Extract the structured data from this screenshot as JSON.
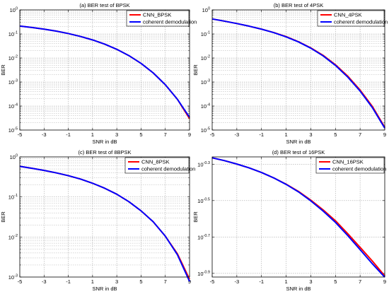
{
  "chart_data": [
    {
      "type": "line",
      "title": "(a)  BER test of BPSK",
      "xlabel": "SNR in dB",
      "ylabel": "BER",
      "yscale": "log",
      "xlim": [
        -5,
        9
      ],
      "ylim": [
        1e-05,
        1
      ],
      "xticks": [
        -5,
        -3,
        -1,
        1,
        3,
        5,
        7,
        9
      ],
      "yticks": [
        {
          "exp": "0"
        },
        {
          "exp": "-1"
        },
        {
          "exp": "-2"
        },
        {
          "exp": "-3"
        },
        {
          "exp": "-4"
        },
        {
          "exp": "-5"
        }
      ],
      "grid": true,
      "legend_position": "top-right",
      "x": [
        -5,
        -4,
        -3,
        -2,
        -1,
        0,
        1,
        2,
        3,
        4,
        5,
        6,
        7,
        8,
        8.5,
        9
      ],
      "series": [
        {
          "name": "CNN_BPSK",
          "color": "#ff0000",
          "values": [
            0.213,
            0.186,
            0.158,
            0.131,
            0.104,
            0.0786,
            0.0563,
            0.0375,
            0.0229,
            0.0125,
            0.00595,
            0.00239,
            0.00077,
            0.00019,
            7.5e-05,
            3e-05
          ]
        },
        {
          "name": "coherent demodulation",
          "color": "#0000ff",
          "values": [
            0.213,
            0.186,
            0.158,
            0.131,
            0.104,
            0.0786,
            0.0563,
            0.0375,
            0.0229,
            0.0125,
            0.00595,
            0.00239,
            0.00077,
            0.00019,
            8e-05,
            3.4e-05
          ]
        }
      ]
    },
    {
      "type": "line",
      "title": "(b)  BER test of 4PSK",
      "xlabel": "SNR in dB",
      "ylabel": "BER",
      "yscale": "log",
      "xlim": [
        -5,
        9
      ],
      "ylim": [
        1e-05,
        1
      ],
      "xticks": [
        -5,
        -3,
        -1,
        1,
        3,
        5,
        7,
        9
      ],
      "yticks": [
        {
          "exp": "0"
        },
        {
          "exp": "-1"
        },
        {
          "exp": "-2"
        },
        {
          "exp": "-3"
        },
        {
          "exp": "-4"
        },
        {
          "exp": "-5"
        }
      ],
      "grid": true,
      "legend_position": "top-right",
      "x": [
        -5,
        -4,
        -3,
        -2,
        -1,
        0,
        1,
        2,
        3,
        4,
        5,
        6,
        7,
        8,
        9
      ],
      "series": [
        {
          "name": "CNN_4PSK",
          "color": "#ff0000",
          "values": [
            0.42,
            0.34,
            0.27,
            0.21,
            0.158,
            0.114,
            0.077,
            0.0475,
            0.0262,
            0.0128,
            0.0052,
            0.00175,
            0.00046,
            9.5e-05,
            1.3e-05
          ]
        },
        {
          "name": "coherent demodulation",
          "color": "#0000ff",
          "values": [
            0.42,
            0.34,
            0.27,
            0.21,
            0.158,
            0.113,
            0.0755,
            0.0465,
            0.0255,
            0.0122,
            0.0049,
            0.0016,
            0.00042,
            8.5e-05,
            1.2e-05
          ]
        }
      ]
    },
    {
      "type": "line",
      "title": "(c)  BER test of 8BPSK",
      "xlabel": "SNR in dB",
      "ylabel": "BER",
      "yscale": "log",
      "xlim": [
        -5,
        9
      ],
      "ylim": [
        0.001,
        1
      ],
      "xticks": [
        -5,
        -3,
        -1,
        1,
        3,
        5,
        7,
        9
      ],
      "yticks": [
        {
          "exp": "0"
        },
        {
          "exp": "-1"
        },
        {
          "exp": "-2"
        },
        {
          "exp": "-3"
        }
      ],
      "grid": true,
      "legend_position": "top-right",
      "x": [
        -5,
        -4,
        -3,
        -2,
        -1,
        0,
        1,
        2,
        3,
        4,
        5,
        6,
        7,
        8,
        9
      ],
      "series": [
        {
          "name": "CNN_8PSK",
          "color": "#ff0000",
          "values": [
            0.58,
            0.52,
            0.46,
            0.4,
            0.34,
            0.28,
            0.22,
            0.165,
            0.117,
            0.076,
            0.045,
            0.024,
            0.0105,
            0.0038,
            0.00088
          ]
        },
        {
          "name": "coherent demodulation",
          "color": "#0000ff",
          "values": [
            0.58,
            0.52,
            0.46,
            0.4,
            0.34,
            0.28,
            0.22,
            0.165,
            0.117,
            0.076,
            0.045,
            0.024,
            0.0105,
            0.0036,
            0.00078
          ]
        }
      ]
    },
    {
      "type": "line",
      "title": "(d)  BER test of 16PSK",
      "xlabel": "SNR in dB",
      "ylabel": "BER",
      "yscale": "log",
      "xlim": [
        -5,
        9
      ],
      "ylim": [
        0.1202,
        0.5495
      ],
      "xticks": [
        -5,
        -3,
        -1,
        1,
        3,
        5,
        7,
        9
      ],
      "yticks": [
        {
          "exp": "-0.3"
        },
        {
          "exp": "-0.5"
        },
        {
          "exp": "-0.7"
        },
        {
          "exp": "-0.9"
        }
      ],
      "grid": true,
      "legend_position": "top-right",
      "x": [
        -5,
        -4,
        -3,
        -2,
        -1,
        0,
        1,
        2,
        3,
        4,
        5,
        6,
        7,
        8,
        9
      ],
      "series": [
        {
          "name": "CNN_16PSK",
          "color": "#ff0000",
          "values": [
            0.543,
            0.524,
            0.502,
            0.478,
            0.451,
            0.421,
            0.389,
            0.355,
            0.318,
            0.281,
            0.245,
            0.208,
            0.175,
            0.147,
            0.122
          ]
        },
        {
          "name": "coherent demodulation",
          "color": "#0000ff",
          "values": [
            0.543,
            0.524,
            0.502,
            0.478,
            0.451,
            0.421,
            0.388,
            0.353,
            0.315,
            0.277,
            0.24,
            0.203,
            0.17,
            0.142,
            0.12
          ]
        }
      ]
    }
  ]
}
